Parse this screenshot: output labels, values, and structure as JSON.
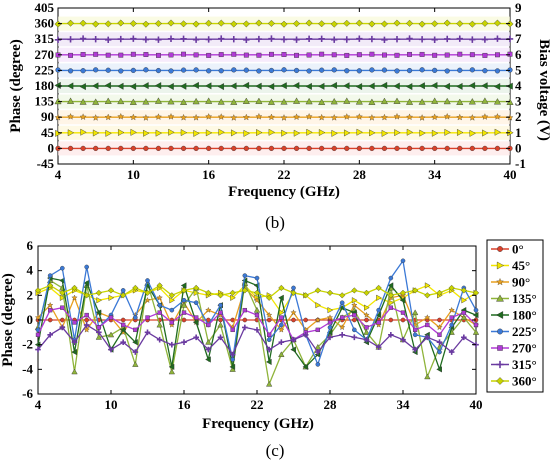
{
  "chart_data": [
    {
      "type": "line",
      "panel_label": "(b)",
      "xlabel": "Frequency (GHz)",
      "ylabel": "Phase (degree)",
      "y2label": "Bias voltage (V)",
      "xlim": [
        4,
        40
      ],
      "ylim": [
        -45,
        405
      ],
      "y2lim": [
        -1,
        9
      ],
      "xticks": [
        4,
        10,
        16,
        22,
        28,
        34,
        40
      ],
      "yticks": [
        -45,
        0,
        45,
        90,
        135,
        180,
        225,
        270,
        315,
        360,
        405
      ],
      "y2ticks": [
        -1,
        0,
        1,
        2,
        3,
        4,
        5,
        6,
        7,
        8,
        9
      ],
      "grid": false,
      "x": [
        4,
        5,
        6,
        7,
        8,
        9,
        10,
        11,
        12,
        13,
        14,
        15,
        16,
        17,
        18,
        19,
        20,
        21,
        22,
        23,
        24,
        25,
        26,
        27,
        28,
        29,
        30,
        31,
        32,
        33,
        34,
        35,
        36,
        37,
        38,
        39,
        40
      ],
      "series": [
        {
          "name": "0°",
          "color": "#d9412b",
          "marker": "circle",
          "level": 0
        },
        {
          "name": "45°",
          "color": "#f2e600",
          "marker": "triangle-right",
          "level": 45
        },
        {
          "name": "90°",
          "color": "#e8a020",
          "marker": "star",
          "level": 90
        },
        {
          "name": "135°",
          "color": "#8fb43a",
          "marker": "triangle-up",
          "level": 135
        },
        {
          "name": "180°",
          "color": "#1f6b1f",
          "marker": "triangle-left",
          "level": 180
        },
        {
          "name": "225°",
          "color": "#3b79d6",
          "marker": "circle",
          "level": 225
        },
        {
          "name": "270°",
          "color": "#b03ad6",
          "marker": "square",
          "level": 270
        },
        {
          "name": "315°",
          "color": "#6a3aa0",
          "marker": "plus",
          "level": 315
        },
        {
          "name": "360°",
          "color": "#c8d400",
          "marker": "diamond",
          "level": 360
        }
      ]
    },
    {
      "type": "line",
      "panel_label": "(c)",
      "xlabel": "Frequency (GHz)",
      "ylabel": "Phase (degree)",
      "xlim": [
        4,
        40
      ],
      "ylim": [
        -6,
        6
      ],
      "xticks": [
        4,
        10,
        16,
        22,
        28,
        34,
        40
      ],
      "yticks": [
        -6,
        -4,
        -2,
        0,
        2,
        4,
        6
      ],
      "grid": false,
      "legend": "right",
      "x": [
        4,
        5,
        6,
        7,
        8,
        9,
        10,
        11,
        12,
        13,
        14,
        15,
        16,
        17,
        18,
        19,
        20,
        21,
        22,
        23,
        24,
        25,
        26,
        27,
        28,
        29,
        30,
        31,
        32,
        33,
        34,
        35,
        36,
        37,
        38,
        39,
        40
      ],
      "series": [
        {
          "name": "0°",
          "color": "#d9412b",
          "marker": "circle",
          "values": [
            0,
            0,
            0,
            0,
            0,
            0,
            0,
            0,
            0,
            0,
            0,
            0,
            0,
            0,
            0,
            0,
            0,
            0,
            0,
            0,
            0,
            0,
            0,
            0,
            0,
            0,
            0,
            0,
            0,
            0,
            0,
            0,
            0,
            0,
            0,
            0,
            0
          ]
        },
        {
          "name": "45°",
          "color": "#f2e600",
          "marker": "triangle-right",
          "values": [
            2.2,
            2.6,
            1.8,
            2.4,
            2.0,
            1.6,
            1.8,
            2.0,
            2.4,
            2.2,
            2.6,
            1.6,
            2.4,
            2.2,
            2.0,
            2.2,
            1.8,
            2.8,
            1.8,
            2.0,
            0.6,
            2.2,
            2.0,
            1.2,
            0.8,
            1.0,
            1.6,
            1.0,
            1.8,
            1.4,
            1.8,
            2.4,
            2.8,
            2.0,
            2.4,
            1.6,
            2.2
          ]
        },
        {
          "name": "90°",
          "color": "#e8a020",
          "marker": "star",
          "values": [
            0.2,
            1.2,
            -0.6,
            1.8,
            -0.8,
            0.6,
            0.2,
            -1.0,
            0.4,
            1.6,
            1.8,
            -0.4,
            1.4,
            -0.2,
            0.8,
            0.4,
            -0.6,
            2.6,
            1.6,
            0.4,
            -0.8,
            0.6,
            -0.8,
            0.0,
            0.2,
            -0.6,
            1.2,
            0.4,
            -0.4,
            1.8,
            2.0,
            -0.4,
            0.2,
            -0.6,
            0.8,
            0.2,
            -0.4
          ]
        },
        {
          "name": "135°",
          "color": "#8fb43a",
          "marker": "triangle-up",
          "values": [
            -0.6,
            3.2,
            2.6,
            -4.2,
            2.8,
            -1.4,
            -1.2,
            -0.6,
            -3.6,
            3.0,
            -0.4,
            -4.2,
            1.2,
            2.6,
            -1.8,
            -0.4,
            -4.0,
            3.0,
            0.8,
            -5.2,
            -2.8,
            -1.6,
            -3.8,
            -2.2,
            -1.2,
            0.2,
            0.8,
            -1.0,
            -2.2,
            2.6,
            -1.6,
            0.6,
            -4.6,
            -2.2,
            -1.0,
            0.2,
            -1.0
          ]
        },
        {
          "name": "180°",
          "color": "#1f6b1f",
          "marker": "triangle-left",
          "values": [
            -2.0,
            3.4,
            3.2,
            -2.6,
            3.0,
            0.6,
            -2.4,
            -0.8,
            -1.8,
            2.8,
            1.2,
            -3.8,
            2.8,
            -0.2,
            -3.2,
            1.2,
            -3.8,
            3.2,
            2.8,
            -3.4,
            1.8,
            -2.4,
            -3.8,
            -2.8,
            -1.0,
            1.0,
            0.6,
            -1.8,
            0.4,
            2.8,
            1.6,
            -2.6,
            -1.2,
            -4.0,
            -0.6,
            0.8,
            0.4
          ]
        },
        {
          "name": "225°",
          "color": "#3b79d6",
          "marker": "circle",
          "values": [
            -0.8,
            3.6,
            4.2,
            -1.6,
            4.3,
            -0.6,
            0.4,
            2.4,
            0.2,
            3.2,
            1.2,
            0.8,
            1.6,
            1.4,
            -0.4,
            1.2,
            -3.2,
            3.6,
            3.4,
            -1.6,
            -0.4,
            2.6,
            -1.2,
            -3.6,
            -0.6,
            1.4,
            -0.8,
            -1.6,
            0.8,
            3.4,
            4.8,
            -1.2,
            -1.4,
            -2.6,
            -0.4,
            2.6,
            0.8
          ]
        },
        {
          "name": "270°",
          "color": "#b03ad6",
          "marker": "square",
          "values": [
            -1.2,
            0.8,
            1.0,
            -0.2,
            0.4,
            -0.6,
            0.2,
            -0.4,
            -0.8,
            0.2,
            0.6,
            -0.2,
            0.6,
            0.2,
            -0.4,
            0.6,
            -0.8,
            0.8,
            0.4,
            -1.2,
            0.2,
            -1.6,
            -1.0,
            -0.8,
            -0.2,
            0.2,
            0.4,
            -0.6,
            -0.2,
            1.0,
            0.6,
            -0.8,
            -0.4,
            -1.2,
            0.2,
            0.6,
            -0.4
          ]
        },
        {
          "name": "315°",
          "color": "#6a3aa0",
          "marker": "plus",
          "values": [
            -2.4,
            -1.2,
            -0.6,
            -1.8,
            -0.4,
            -1.0,
            -2.4,
            -1.8,
            -2.6,
            -1.0,
            -1.6,
            -2.0,
            -1.8,
            -1.4,
            -2.4,
            -1.4,
            -2.8,
            -0.6,
            -0.8,
            -2.4,
            -1.8,
            -1.6,
            -1.2,
            -2.6,
            -1.4,
            -1.2,
            -1.4,
            -1.6,
            -2.2,
            -1.2,
            -1.6,
            -2.4,
            -1.4,
            -1.8,
            -2.6,
            -1.4,
            -2.0
          ]
        },
        {
          "name": "360°",
          "color": "#c8d400",
          "marker": "diamond",
          "values": [
            2.4,
            2.8,
            2.2,
            2.6,
            2.0,
            2.2,
            2.4,
            2.0,
            2.6,
            2.2,
            2.8,
            2.0,
            2.4,
            2.6,
            2.2,
            2.0,
            2.2,
            2.4,
            2.2,
            1.8,
            2.6,
            2.2,
            2.0,
            2.4,
            2.2,
            2.0,
            2.4,
            2.2,
            2.6,
            2.0,
            2.2,
            2.4,
            2.0,
            2.2,
            2.6,
            2.4,
            2.2
          ]
        }
      ]
    }
  ]
}
